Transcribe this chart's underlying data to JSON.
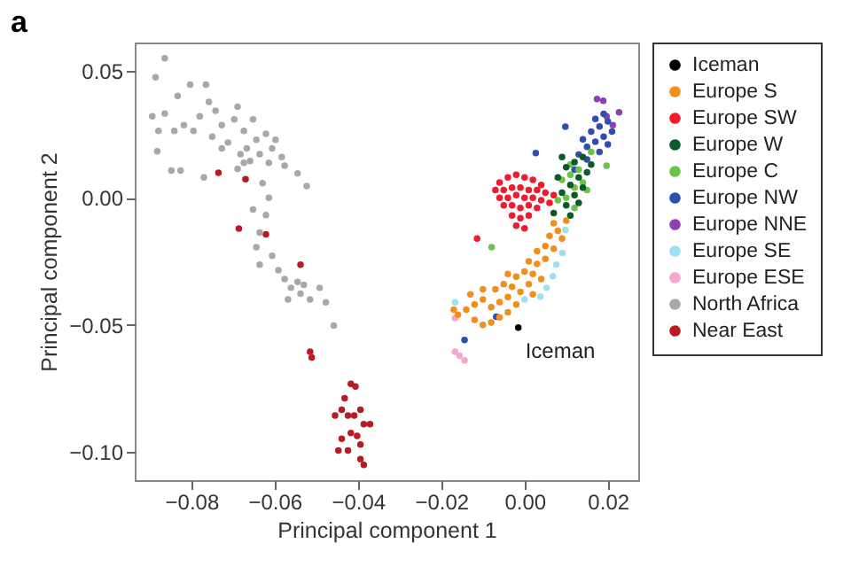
{
  "chart_data": {
    "type": "scatter",
    "title": "a",
    "xlabel": "Principal component 1",
    "ylabel": "Principal component 2",
    "xlim": [
      -0.0936,
      0.0273
    ],
    "ylim": [
      -0.111,
      0.061
    ],
    "xticks": [
      {
        "value": -0.08,
        "label": "−0.08"
      },
      {
        "value": -0.06,
        "label": "−0.06"
      },
      {
        "value": -0.04,
        "label": "−0.04"
      },
      {
        "value": -0.02,
        "label": "−0.02"
      },
      {
        "value": 0,
        "label": "0.00"
      },
      {
        "value": 0.02,
        "label": "0.02"
      }
    ],
    "yticks": [
      {
        "value": 0.05,
        "label": "0.05"
      },
      {
        "value": 0,
        "label": "0.00"
      },
      {
        "value": -0.05,
        "label": "−0.05"
      },
      {
        "value": -0.1,
        "label": "−0.10"
      }
    ],
    "grid": false,
    "legend": "right",
    "marker": "circle",
    "annotations": [
      {
        "text": "Iceman",
        "x": -0.0015,
        "y": -0.051
      }
    ],
    "series": [
      {
        "name": "Iceman",
        "color": "#000000",
        "x": [
          -0.0015
        ],
        "values": [
          -0.051
        ]
      },
      {
        "name": "Europe S",
        "color": "#f28e1c",
        "x": [
          -0.016,
          -0.014,
          -0.012,
          -0.01,
          -0.008,
          -0.006,
          -0.004,
          -0.012,
          -0.01,
          -0.008,
          -0.006,
          -0.004,
          -0.002,
          -0.01,
          -0.007,
          -0.005,
          -0.003,
          -0.001,
          0.001,
          -0.004,
          -0.002,
          0,
          0.002,
          0.003,
          0.001,
          0.005,
          0.003,
          0.005,
          0.007,
          0.006,
          0.008,
          0.009,
          0.007,
          0.01,
          -0.017,
          -0.013,
          0.002,
          0.004
        ],
        "values": [
          -0.046,
          -0.044,
          -0.048,
          -0.05,
          -0.049,
          -0.047,
          -0.045,
          -0.042,
          -0.04,
          -0.043,
          -0.041,
          -0.039,
          -0.042,
          -0.036,
          -0.036,
          -0.034,
          -0.035,
          -0.037,
          -0.034,
          -0.03,
          -0.031,
          -0.029,
          -0.03,
          -0.026,
          -0.025,
          -0.024,
          -0.021,
          -0.019,
          -0.02,
          -0.015,
          -0.013,
          -0.016,
          -0.01,
          -0.009,
          -0.044,
          -0.038,
          -0.038,
          -0.032
        ]
      },
      {
        "name": "Europe SW",
        "color": "#ee1c2e",
        "x": [
          -0.006,
          -0.004,
          -0.002,
          0,
          0.002,
          0.004,
          -0.007,
          -0.005,
          -0.003,
          -0.001,
          0.001,
          0.003,
          0.005,
          0.007,
          -0.006,
          -0.004,
          -0.002,
          0,
          0.002,
          0.004,
          0.006,
          -0.005,
          -0.003,
          -0.001,
          0.001,
          0.003,
          -0.003,
          -0.001,
          0.001,
          -0.002,
          0,
          -0.0114
        ],
        "values": [
          0.006,
          0.008,
          0.009,
          0.008,
          0.007,
          0.005,
          0.003,
          0.003,
          0.004,
          0.004,
          0.003,
          0.003,
          0.002,
          0.001,
          0,
          0,
          0.001,
          0,
          0,
          -0.001,
          -0.002,
          -0.003,
          -0.003,
          -0.004,
          -0.003,
          -0.004,
          -0.007,
          -0.008,
          -0.007,
          -0.011,
          -0.012,
          -0.016
        ]
      },
      {
        "name": "Europe W",
        "color": "#0b5b2a",
        "x": [
          0.008,
          0.01,
          0.012,
          0.014,
          0.011,
          0.013,
          0.015,
          0.009,
          0.012,
          0.014,
          0.01,
          0.013,
          0.007,
          0.011,
          0.016,
          0.009
        ],
        "values": [
          0.008,
          0.012,
          0.014,
          0.016,
          0.005,
          0.008,
          0.01,
          0.002,
          0.001,
          0.004,
          -0.003,
          -0.002,
          -0.006,
          -0.007,
          0.013,
          0.016
        ]
      },
      {
        "name": "Europe C",
        "color": "#6cc24a",
        "x": [
          0.009,
          0.011,
          0.013,
          0.012,
          0.014,
          0.01,
          0.012,
          0.015,
          0.016,
          0.0197,
          0.008,
          -0.0079,
          0.011
        ],
        "values": [
          0.007,
          0.009,
          0.011,
          0.004,
          0.006,
          0,
          -0.004,
          0.003,
          0.018,
          0.0126,
          -0.001,
          -0.0194,
          0.013
        ]
      },
      {
        "name": "Europe NW",
        "color": "#2f4eb0",
        "x": [
          0.013,
          0.015,
          0.017,
          0.019,
          0.014,
          0.016,
          0.018,
          0.02,
          0.017,
          0.019,
          0.015,
          0.018,
          0.02,
          0.021,
          0.012,
          0.0027,
          0.0098,
          -0.0068,
          -0.0144
        ],
        "values": [
          0.017,
          0.02,
          0.022,
          0.024,
          0.023,
          0.026,
          0.028,
          0.03,
          0.031,
          0.033,
          0.015,
          0.018,
          0.021,
          0.026,
          0.011,
          0.0176,
          0.0279,
          -0.0468,
          -0.0559
        ]
      },
      {
        "name": "Europe NNE",
        "color": "#8e3fb0",
        "x": [
          0.0174,
          0.0189,
          0.0227,
          0.0212,
          0.0197
        ],
        "values": [
          0.0388,
          0.0381,
          0.0336,
          0.0285,
          0.032
        ]
      },
      {
        "name": "Europe SE",
        "color": "#9fe0f0",
        "x": [
          0.0038,
          0.0053,
          0.0068,
          0.0076,
          0.0091,
          -0.0167,
          0.0098,
          0
        ],
        "values": [
          -0.0388,
          -0.0354,
          -0.0308,
          -0.0263,
          -0.0217,
          -0.0411,
          -0.0126,
          -0.04
        ]
      },
      {
        "name": "Europe ESE",
        "color": "#f4a6cf",
        "x": [
          -0.0167,
          -0.0167,
          -0.0156,
          -0.0144
        ],
        "values": [
          -0.0473,
          -0.0605,
          -0.0621,
          -0.0639
        ]
      },
      {
        "name": "North Africa",
        "color": "#a8a8a8",
        "x": [
          -0.0864,
          -0.0886,
          -0.0882,
          -0.0848,
          -0.0826,
          -0.077,
          -0.0803,
          -0.0765,
          -0.0833,
          -0.0864,
          -0.0894,
          -0.0818,
          -0.0795,
          -0.0841,
          -0.0879,
          -0.0758,
          -0.0742,
          -0.078,
          -0.0727,
          -0.0689,
          -0.0697,
          -0.0674,
          -0.0652,
          -0.0644,
          -0.0667,
          -0.0636,
          -0.0606,
          -0.0614,
          -0.0583,
          -0.0576,
          -0.0621,
          -0.0598,
          -0.0712,
          -0.0682,
          -0.0659,
          -0.0689,
          -0.0545,
          -0.0523,
          -0.0629,
          -0.0614,
          -0.0652,
          -0.0621,
          -0.0636,
          -0.0644,
          -0.0606,
          -0.0591,
          -0.0576,
          -0.0545,
          -0.0561,
          -0.053,
          -0.0538,
          -0.0515,
          -0.0568,
          -0.0492,
          -0.0477,
          -0.0458,
          -0.0636,
          -0.0674,
          -0.0727,
          -0.075
        ],
        "values": [
          0.0548,
          0.0473,
          0.0183,
          0.0107,
          0.0107,
          0.008,
          0.0445,
          0.0445,
          0.04,
          0.0331,
          0.032,
          0.0285,
          0.0263,
          0.0263,
          0.0263,
          0.0377,
          0.0342,
          0.032,
          0.0285,
          0.0358,
          0.0308,
          0.0263,
          0.0308,
          0.0228,
          0.0194,
          0.0171,
          0.0194,
          0.0137,
          0.016,
          0.0126,
          0.0251,
          0.0228,
          0.0217,
          0.0171,
          0.0144,
          0.0114,
          0.0096,
          0.0046,
          0.0057,
          0,
          -0.0046,
          -0.0068,
          -0.0137,
          -0.0194,
          -0.0228,
          -0.0285,
          -0.032,
          -0.0331,
          -0.0354,
          -0.0342,
          -0.0377,
          -0.04,
          -0.04,
          -0.0354,
          -0.0411,
          -0.0502,
          -0.0263,
          0.0137,
          0.0194,
          0.024
        ]
      },
      {
        "name": "Near East",
        "color": "#b81c22",
        "x": [
          -0.0735,
          -0.067,
          -0.0686,
          -0.0621,
          -0.0538,
          -0.0515,
          -0.0511,
          -0.0417,
          -0.0406,
          -0.0432,
          -0.0394,
          -0.0455,
          -0.0424,
          -0.0386,
          -0.0402,
          -0.0417,
          -0.0439,
          -0.0371,
          -0.0447,
          -0.0424,
          -0.0394,
          -0.0394,
          -0.0386,
          -0.0409,
          -0.0439
        ],
        "values": [
          0.0098,
          0.0073,
          -0.0121,
          -0.0144,
          -0.0263,
          -0.0605,
          -0.0628,
          -0.0731,
          -0.0742,
          -0.0788,
          -0.0833,
          -0.0856,
          -0.0856,
          -0.089,
          -0.0936,
          -0.0925,
          -0.0947,
          -0.089,
          -0.0993,
          -0.0993,
          -0.097,
          -0.1027,
          -0.105,
          -0.0856,
          -0.0833
        ]
      }
    ]
  }
}
